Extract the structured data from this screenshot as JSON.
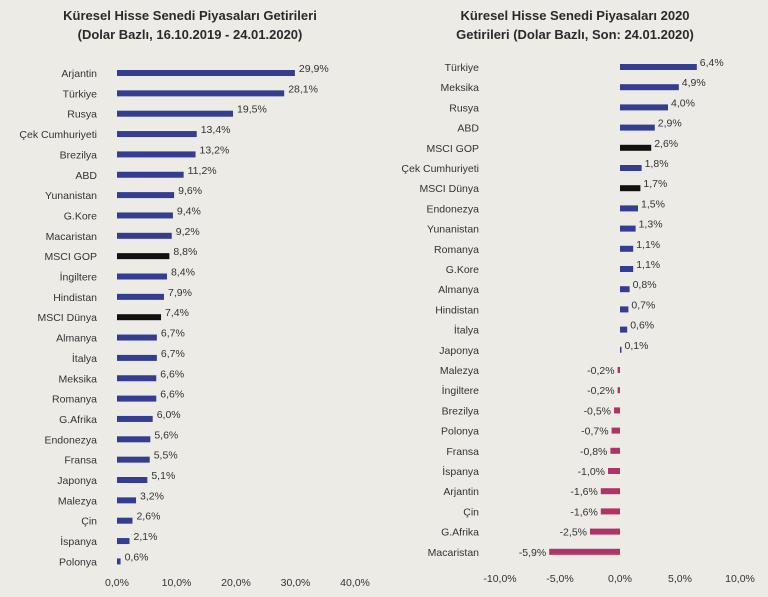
{
  "chart_data": [
    {
      "type": "bar",
      "orientation": "horizontal",
      "title_lines": [
        "Küresel Hisse Senedi Piyasaları Getirileri",
        "(Dolar Bazlı, 16.10.2019 - 24.01.2020)"
      ],
      "categories": [
        "Arjantin",
        "Türkiye",
        "Rusya",
        "Çek Cumhuriyeti",
        "Brezilya",
        "ABD",
        "Yunanistan",
        "G.Kore",
        "Macaristan",
        "MSCI GOP",
        "İngiltere",
        "Hindistan",
        "MSCI Dünya",
        "Almanya",
        "İtalya",
        "Meksika",
        "Romanya",
        "G.Afrika",
        "Endonezya",
        "Fransa",
        "Japonya",
        "Malezya",
        "Çin",
        "İspanya",
        "Polonya"
      ],
      "values": [
        29.9,
        28.1,
        19.5,
        13.4,
        13.2,
        11.2,
        9.6,
        9.4,
        9.2,
        8.8,
        8.4,
        7.9,
        7.4,
        6.7,
        6.7,
        6.6,
        6.6,
        6.0,
        5.6,
        5.5,
        5.1,
        3.2,
        2.6,
        2.1,
        0.6
      ],
      "value_labels": [
        "29,9%",
        "28,1%",
        "19,5%",
        "13,4%",
        "13,2%",
        "11,2%",
        "9,6%",
        "9,4%",
        "9,2%",
        "8,8%",
        "8,4%",
        "7,9%",
        "7,4%",
        "6,7%",
        "6,7%",
        "6,6%",
        "6,6%",
        "6,0%",
        "5,6%",
        "5,5%",
        "5,1%",
        "3,2%",
        "2,6%",
        "2,1%",
        "0,6%"
      ],
      "highlight": [
        "MSCI GOP",
        "MSCI Dünya"
      ],
      "xlim": [
        0,
        40
      ],
      "ticks": [
        0,
        10,
        20,
        30,
        40
      ],
      "tick_labels": [
        "0,0%",
        "10,0%",
        "20,0%",
        "30,0%",
        "40,0%"
      ],
      "colors": {
        "bar": "#343d92",
        "highlight": "#111111"
      }
    },
    {
      "type": "bar",
      "orientation": "horizontal",
      "title_lines": [
        "Küresel Hisse Senedi Piyasaları 2020",
        "Getirileri (Dolar Bazlı, Son: 24.01.2020)"
      ],
      "categories": [
        "Türkiye",
        "Meksika",
        "Rusya",
        "ABD",
        "MSCI GOP",
        "Çek Cumhuriyeti",
        "MSCI Dünya",
        "Endonezya",
        "Yunanistan",
        "Romanya",
        "G.Kore",
        "Almanya",
        "Hindistan",
        "İtalya",
        "Japonya",
        "Malezya",
        "İngiltere",
        "Brezilya",
        "Polonya",
        "Fransa",
        "İspanya",
        "Arjantin",
        "Çin",
        "G.Afrika",
        "Macaristan"
      ],
      "values": [
        6.4,
        4.9,
        4.0,
        2.9,
        2.6,
        1.8,
        1.7,
        1.5,
        1.3,
        1.1,
        1.1,
        0.8,
        0.7,
        0.6,
        0.1,
        -0.2,
        -0.2,
        -0.5,
        -0.7,
        -0.8,
        -1.0,
        -1.6,
        -1.6,
        -2.5,
        -5.9
      ],
      "value_labels": [
        "6,4%",
        "4,9%",
        "4,0%",
        "2,9%",
        "2,6%",
        "1,8%",
        "1,7%",
        "1,5%",
        "1,3%",
        "1,1%",
        "1,1%",
        "0,8%",
        "0,7%",
        "0,6%",
        "0,1%",
        "-0,2%",
        "-0,2%",
        "-0,5%",
        "-0,7%",
        "-0,8%",
        "-1,0%",
        "-1,6%",
        "-1,6%",
        "-2,5%",
        "-5,9%"
      ],
      "highlight": [
        "MSCI GOP",
        "MSCI Dünya"
      ],
      "xlim": [
        -10,
        10
      ],
      "ticks": [
        -10,
        -5,
        0,
        5,
        10
      ],
      "tick_labels": [
        "-10,0%",
        "-5,0%",
        "0,0%",
        "5,0%",
        "10,0%"
      ],
      "colors": {
        "positive": "#343d92",
        "negative": "#b03266",
        "highlight": "#111111"
      }
    }
  ]
}
